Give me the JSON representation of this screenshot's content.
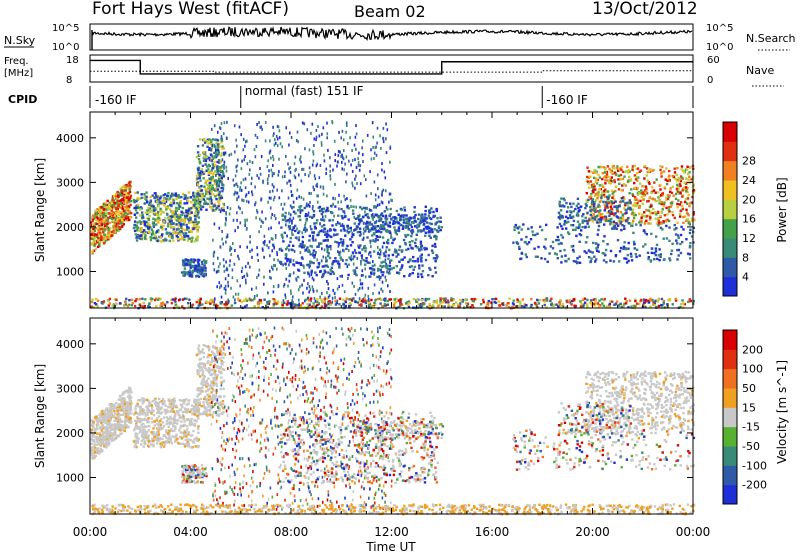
{
  "header": {
    "station": "Fort Hays West (fitACF)",
    "beam": "Beam 02",
    "date": "13/Oct/2012"
  },
  "strips": {
    "nsky_label": "N.Sky",
    "nsky_ticks": [
      "10^5",
      "10^0"
    ],
    "nsearch_label": "N.Search",
    "freq_label_1": "Freq.",
    "freq_label_2": "[MHz]",
    "freq_ticks": [
      "18",
      "8"
    ],
    "nave_ticks": [
      "60",
      "0"
    ],
    "nave_label": "Nave",
    "cpid_label": "CPID",
    "cpid_segments": [
      {
        "label": "-160 IF",
        "start": 0.0,
        "end": 6.0
      },
      {
        "label": "normal (fast) 151 IF",
        "start": 6.0,
        "end": 18.0
      },
      {
        "label": "-160 IF",
        "start": 18.0,
        "end": 24.0
      }
    ]
  },
  "chart_data": [
    {
      "type": "heatmap",
      "title": "",
      "xlabel": "Time UT",
      "ylabel": "Slant Range [km]",
      "xlim": [
        0,
        24
      ],
      "ylim": [
        180,
        4580
      ],
      "xticks": [
        "00:00",
        "04:00",
        "08:00",
        "12:00",
        "16:00",
        "20:00",
        "00:00"
      ],
      "yticks": [
        1000,
        2000,
        3000,
        4000
      ],
      "colorbar": {
        "label": "Power [dB]",
        "ticks": [
          4,
          8,
          12,
          16,
          20,
          24,
          28
        ],
        "colors": [
          "#1f2fd8",
          "#2f5aa8",
          "#3a8a78",
          "#45a04a",
          "#b8d040",
          "#f0c020",
          "#f08020",
          "#e03010",
          "#d80000"
        ]
      }
    },
    {
      "type": "heatmap",
      "title": "",
      "xlabel": "Time UT",
      "ylabel": "Slant Range [km]",
      "xlim": [
        0,
        24
      ],
      "ylim": [
        180,
        4580
      ],
      "xticks": [
        "00:00",
        "04:00",
        "08:00",
        "12:00",
        "16:00",
        "20:00",
        "00:00"
      ],
      "yticks": [
        1000,
        2000,
        3000,
        4000
      ],
      "colorbar": {
        "label": "Velocity [m s^-1]",
        "ticks": [
          200,
          100,
          50,
          15,
          -15,
          -50,
          -100,
          -200
        ],
        "colors": [
          "#1f2fd8",
          "#2f5aa8",
          "#3a8a78",
          "#58b030",
          "#c8c8c8",
          "#f0a020",
          "#f07020",
          "#e03010",
          "#d80000"
        ]
      }
    }
  ]
}
